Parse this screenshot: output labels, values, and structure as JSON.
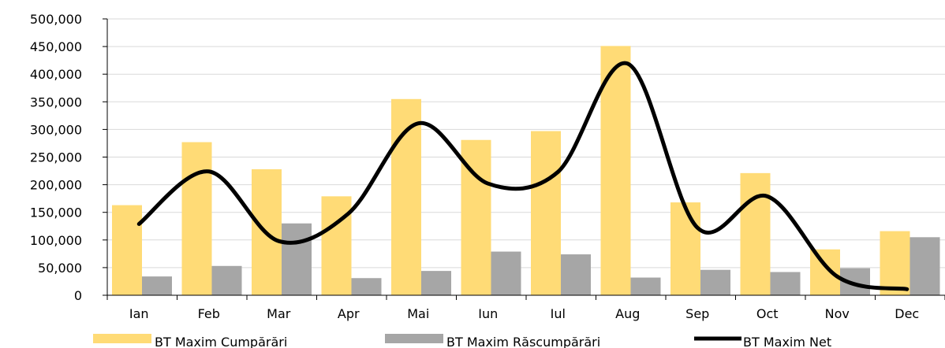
{
  "chart_data": {
    "type": "bar",
    "categories": [
      "Ian",
      "Feb",
      "Mar",
      "Apr",
      "Mai",
      "Iun",
      "Iul",
      "Aug",
      "Sep",
      "Oct",
      "Nov",
      "Dec"
    ],
    "series": [
      {
        "name": "BT Maxim Cumpărări",
        "type": "bar",
        "color": "#FFDB76",
        "values": [
          163000,
          277000,
          228000,
          179000,
          355000,
          281000,
          297000,
          451000,
          168000,
          221000,
          83000,
          116000
        ]
      },
      {
        "name": "BT Maxim Răscumpărări",
        "type": "bar",
        "color": "#A6A6A6",
        "values": [
          34000,
          53000,
          130000,
          31000,
          44000,
          79000,
          74000,
          32000,
          46000,
          42000,
          49000,
          105000
        ]
      },
      {
        "name": "BT Maxim Net",
        "type": "line",
        "color": "#000000",
        "values": [
          129000,
          224000,
          98000,
          148000,
          311000,
          202000,
          223000,
          419000,
          122000,
          179000,
          34000,
          11000
        ]
      }
    ],
    "y_ticks": [
      "0",
      "50,000",
      "100,000",
      "150,000",
      "200,000",
      "250,000",
      "300,000",
      "350,000",
      "400,000",
      "450,000",
      "500,000"
    ],
    "ylim": [
      0,
      500000
    ],
    "grid": true,
    "legend_position": "bottom"
  }
}
